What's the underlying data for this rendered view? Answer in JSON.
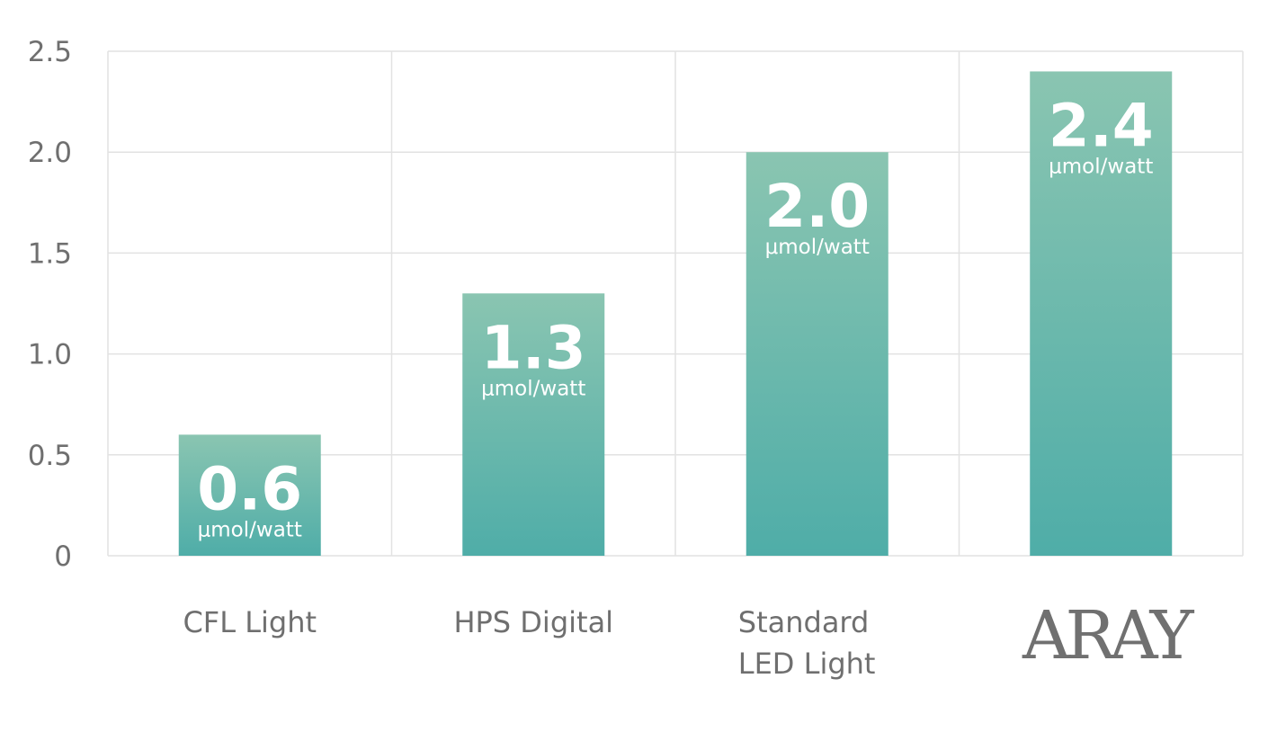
{
  "chart_data": {
    "type": "bar",
    "categories": [
      "CFL Light",
      "HPS Digital",
      "Standard LED Light",
      "ARAY"
    ],
    "category_lines": [
      [
        "CFL Light"
      ],
      [
        "HPS Digital"
      ],
      [
        "Standard",
        "LED Light"
      ],
      [
        "ARAY"
      ]
    ],
    "logo_categories": [
      "ARAY"
    ],
    "values": [
      0.6,
      1.3,
      2.0,
      2.4
    ],
    "value_labels": [
      "0.6",
      "1.3",
      "2.0",
      "2.4"
    ],
    "unit_label": "μmol/watt",
    "yticks": [
      "0",
      "0.5",
      "1.0",
      "1.5",
      "2.0",
      "2.5"
    ],
    "ytick_values": [
      0,
      0.5,
      1.0,
      1.5,
      2.0,
      2.5
    ],
    "ylim": [
      0,
      2.5
    ],
    "grid": true,
    "legend": "none",
    "colors": {
      "bar_top": "#8ac5b1",
      "bar_bottom": "#4fada8",
      "grid": "#e2e2e2",
      "text": "#6f6f6f",
      "label": "#ffffff"
    }
  }
}
